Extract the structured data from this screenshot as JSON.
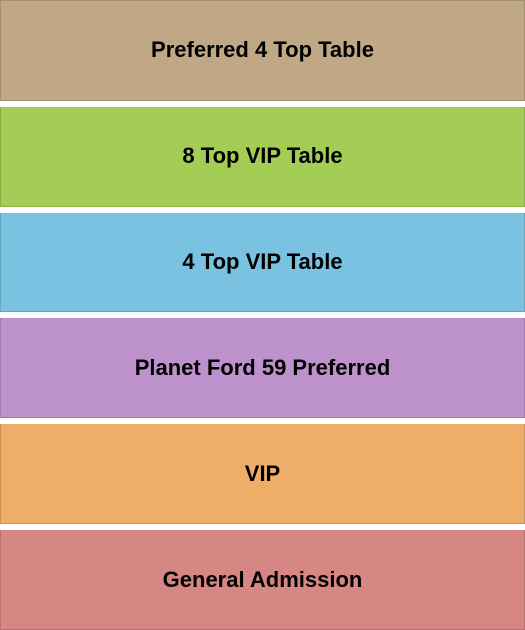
{
  "chart": {
    "type": "seating-diagram",
    "background_color": "#ffffff",
    "gap_height": 6,
    "label_fontsize": 22,
    "label_fontweight": "bold",
    "label_color": "#000000",
    "sections": [
      {
        "label": "Preferred 4 Top Table",
        "background_color": "#c0a786"
      },
      {
        "label": "8 Top VIP Table",
        "background_color": "#a4cd56"
      },
      {
        "label": "4 Top VIP Table",
        "background_color": "#79c2e1"
      },
      {
        "label": "Planet Ford 59 Preferred",
        "background_color": "#bd91cb"
      },
      {
        "label": "VIP",
        "background_color": "#eeae69"
      },
      {
        "label": "General Admission",
        "background_color": "#d68683"
      }
    ]
  }
}
